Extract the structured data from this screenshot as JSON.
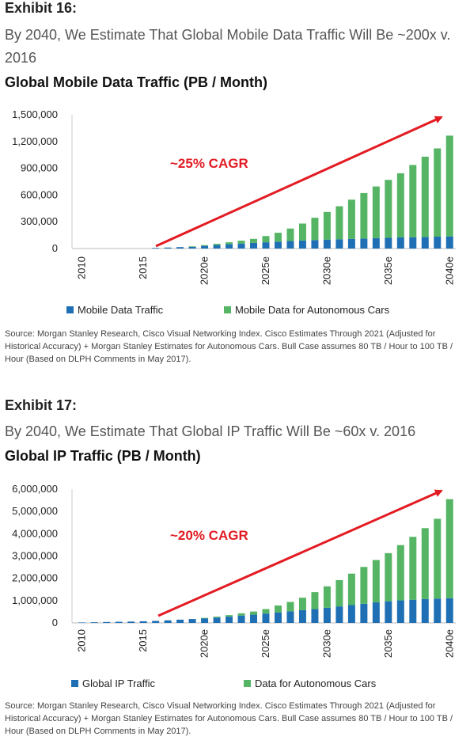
{
  "colors": {
    "traffic": "#1f6fb5",
    "autonomous": "#55b564",
    "arrow": "#e31b23",
    "annotation": "#e31b23"
  },
  "exhibits": [
    {
      "label": "Exhibit 16:",
      "subtitle": "By 2040, We Estimate That Global Mobile Data Traffic Will Be ~200x v. 2016",
      "chart_title": "Global Mobile Data Traffic (PB / Month)",
      "annotation": "~25% CAGR",
      "source": "Source: Morgan Stanley Research, Cisco Visual Networking Index. Cisco Estimates Through 2021 (Adjusted for Historical Accuracy) + Morgan Stanley Estimates for Autonomous Cars. Bull Case assumes 80 TB / Hour to 100 TB / Hour (Based on DLPH Comments in May 2017).",
      "chart_data": {
        "type": "bar",
        "stacked": true,
        "categories": [
          "2010",
          "2011",
          "2012",
          "2013",
          "2014",
          "2015",
          "2016",
          "2017e",
          "2018e",
          "2019e",
          "2020e",
          "2021e",
          "2022e",
          "2023e",
          "2024e",
          "2025e",
          "2026e",
          "2027e",
          "2028e",
          "2029e",
          "2030e",
          "2031e",
          "2032e",
          "2033e",
          "2034e",
          "2035e",
          "2036e",
          "2037e",
          "2038e",
          "2039e",
          "2040e"
        ],
        "tick_labels": [
          "2010",
          "2015",
          "2020e",
          "2025e",
          "2030e",
          "2035e",
          "2040e"
        ],
        "yticks": [
          "0",
          "300,000",
          "600,000",
          "900,000",
          "1,200,000",
          "1,500,000"
        ],
        "ylim": [
          0,
          1500000
        ],
        "legend_position": "bottom",
        "series": [
          {
            "name": "Mobile Data Traffic",
            "values": [
              0,
              0,
              0,
              0,
              0,
              0,
              7000,
              11000,
              16000,
              22000,
              30000,
              39000,
              48000,
              56000,
              63000,
              70000,
              77000,
              84000,
              90000,
              95000,
              100000,
              104000,
              108000,
              112000,
              116000,
              120000,
              124000,
              127000,
              130000,
              133000,
              136000
            ]
          },
          {
            "name": "Mobile Data for Autonomous Cars",
            "values": [
              0,
              0,
              0,
              0,
              0,
              0,
              0,
              0,
              0,
              2000,
              8000,
              14000,
              22000,
              32000,
              45000,
              70000,
              100000,
              140000,
              190000,
              250000,
              310000,
              370000,
              440000,
              510000,
              580000,
              650000,
              720000,
              810000,
              900000,
              990000,
              1130000
            ]
          }
        ]
      }
    },
    {
      "label": "Exhibit 17:",
      "subtitle": "By 2040, We Estimate That Global IP Traffic Will Be ~60x v. 2016",
      "chart_title": "Global IP Traffic (PB / Month)",
      "annotation": "~20% CAGR",
      "source": "Source: Morgan Stanley Research, Cisco Visual Networking Index. Cisco Estimates Through 2021 (Adjusted for Historical Accuracy) + Morgan Stanley Estimates for Autonomous Cars. Bull Case assumes 80 TB / Hour to 100 TB / Hour (Based on DLPH Comments in May 2017).",
      "chart_data": {
        "type": "bar",
        "stacked": true,
        "categories": [
          "2010",
          "2011",
          "2012",
          "2013",
          "2014",
          "2015",
          "2016",
          "2017e",
          "2018e",
          "2019e",
          "2020e",
          "2021e",
          "2022e",
          "2023e",
          "2024e",
          "2025e",
          "2026e",
          "2027e",
          "2028e",
          "2029e",
          "2030e",
          "2031e",
          "2032e",
          "2033e",
          "2034e",
          "2035e",
          "2036e",
          "2037e",
          "2038e",
          "2039e",
          "2040e"
        ],
        "tick_labels": [
          "2010",
          "2015",
          "2020e",
          "2025e",
          "2030e",
          "2035e",
          "2040e"
        ],
        "yticks": [
          "0",
          "1,000,000",
          "2,000,000",
          "3,000,000",
          "4,000,000",
          "5,000,000",
          "6,000,000"
        ],
        "ylim": [
          0,
          6000000
        ],
        "legend_position": "bottom",
        "series": [
          {
            "name": "Global IP Traffic",
            "values": [
              20000,
              30000,
              40000,
              50000,
              60000,
              73000,
              90000,
              115000,
              145000,
              175000,
              205000,
              240000,
              280000,
              330000,
              370000,
              420000,
              470000,
              520000,
              570000,
              620000,
              680000,
              740000,
              800000,
              860000,
              920000,
              970000,
              1010000,
              1040000,
              1070000,
              1090000,
              1110000
            ]
          },
          {
            "name": "Data for Autonomous Cars",
            "values": [
              0,
              0,
              0,
              0,
              0,
              0,
              0,
              0,
              0,
              0,
              20000,
              40000,
              70000,
              100000,
              140000,
              200000,
              310000,
              420000,
              560000,
              760000,
              960000,
              1180000,
              1410000,
              1650000,
              1900000,
              2160000,
              2480000,
              2820000,
              3180000,
              3580000,
              4440000
            ]
          }
        ]
      }
    }
  ]
}
